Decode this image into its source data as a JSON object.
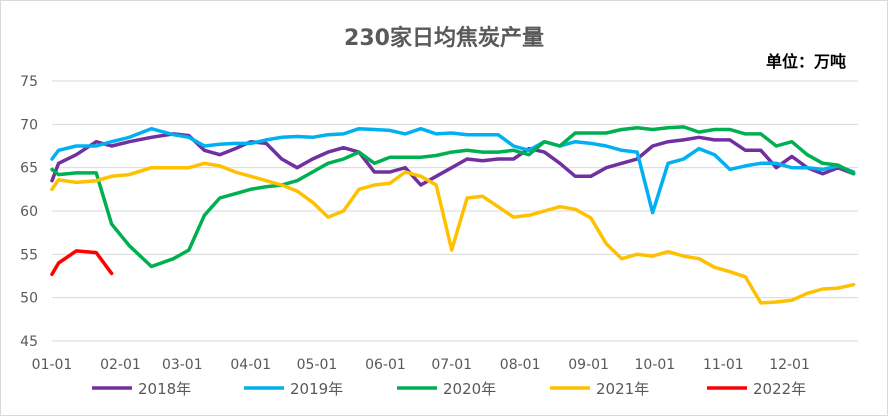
{
  "chart_data": {
    "type": "line",
    "title": "230家日均焦炭产量",
    "unit_label": "单位：万吨",
    "ylim": [
      45,
      75
    ],
    "yticks": [
      45,
      50,
      55,
      60,
      65,
      70,
      75
    ],
    "x_tick_labels": [
      "01-01",
      "02-01",
      "03-01",
      "04-01",
      "05-01",
      "06-01",
      "07-01",
      "08-01",
      "09-01",
      "10-01",
      "11-01",
      "12-01"
    ],
    "grid": "horizontal",
    "legend_position": "bottom",
    "series": [
      {
        "name": "2018年",
        "color": "#7030a0",
        "points": [
          [
            "01-01",
            63.5
          ],
          [
            "01-04",
            65.5
          ],
          [
            "01-12",
            66.5
          ],
          [
            "01-21",
            68.0
          ],
          [
            "01-28",
            67.5
          ],
          [
            "02-05",
            68.0
          ],
          [
            "02-15",
            68.5
          ],
          [
            "02-25",
            68.9
          ],
          [
            "03-04",
            68.7
          ],
          [
            "03-11",
            67.0
          ],
          [
            "03-18",
            66.5
          ],
          [
            "03-25",
            67.2
          ],
          [
            "04-01",
            68.0
          ],
          [
            "04-08",
            67.8
          ],
          [
            "04-15",
            66.0
          ],
          [
            "04-22",
            65.0
          ],
          [
            "04-29",
            66.0
          ],
          [
            "05-06",
            66.8
          ],
          [
            "05-13",
            67.3
          ],
          [
            "05-20",
            66.8
          ],
          [
            "05-27",
            64.5
          ],
          [
            "06-03",
            64.5
          ],
          [
            "06-10",
            65.0
          ],
          [
            "06-17",
            63.0
          ],
          [
            "06-24",
            64.0
          ],
          [
            "07-01",
            65.0
          ],
          [
            "07-08",
            66.0
          ],
          [
            "07-15",
            65.8
          ],
          [
            "07-22",
            66.0
          ],
          [
            "07-29",
            66.0
          ],
          [
            "08-05",
            67.2
          ],
          [
            "08-12",
            66.8
          ],
          [
            "08-19",
            65.5
          ],
          [
            "08-26",
            64.0
          ],
          [
            "09-02",
            64.0
          ],
          [
            "09-09",
            65.0
          ],
          [
            "09-16",
            65.5
          ],
          [
            "09-23",
            66.0
          ],
          [
            "09-30",
            67.5
          ],
          [
            "10-07",
            68.0
          ],
          [
            "10-14",
            68.2
          ],
          [
            "10-21",
            68.5
          ],
          [
            "10-28",
            68.2
          ],
          [
            "11-04",
            68.2
          ],
          [
            "11-11",
            67.0
          ],
          [
            "11-18",
            67.0
          ],
          [
            "11-25",
            65.0
          ],
          [
            "12-02",
            66.3
          ],
          [
            "12-09",
            65.0
          ],
          [
            "12-16",
            64.3
          ],
          [
            "12-23",
            65.0
          ],
          [
            "12-30",
            64.3
          ]
        ]
      },
      {
        "name": "2019年",
        "color": "#00b0f0",
        "points": [
          [
            "01-01",
            66.0
          ],
          [
            "01-04",
            67.0
          ],
          [
            "01-12",
            67.5
          ],
          [
            "01-21",
            67.5
          ],
          [
            "01-28",
            68.0
          ],
          [
            "02-05",
            68.5
          ],
          [
            "02-15",
            69.5
          ],
          [
            "02-25",
            68.8
          ],
          [
            "03-04",
            68.5
          ],
          [
            "03-11",
            67.5
          ],
          [
            "03-18",
            67.7
          ],
          [
            "03-25",
            67.8
          ],
          [
            "04-01",
            67.8
          ],
          [
            "04-08",
            68.2
          ],
          [
            "04-15",
            68.5
          ],
          [
            "04-22",
            68.6
          ],
          [
            "04-29",
            68.5
          ],
          [
            "05-06",
            68.8
          ],
          [
            "05-13",
            68.9
          ],
          [
            "05-20",
            69.5
          ],
          [
            "05-27",
            69.4
          ],
          [
            "06-03",
            69.3
          ],
          [
            "06-10",
            68.9
          ],
          [
            "06-17",
            69.5
          ],
          [
            "06-24",
            68.9
          ],
          [
            "07-01",
            69.0
          ],
          [
            "07-08",
            68.8
          ],
          [
            "07-15",
            68.8
          ],
          [
            "07-22",
            68.8
          ],
          [
            "07-29",
            67.5
          ],
          [
            "08-05",
            67.0
          ],
          [
            "08-12",
            68.0
          ],
          [
            "08-19",
            67.5
          ],
          [
            "08-26",
            68.0
          ],
          [
            "09-02",
            67.8
          ],
          [
            "09-09",
            67.5
          ],
          [
            "09-16",
            67.0
          ],
          [
            "09-23",
            66.8
          ],
          [
            "09-30",
            59.8
          ],
          [
            "10-07",
            65.5
          ],
          [
            "10-14",
            66.0
          ],
          [
            "10-21",
            67.2
          ],
          [
            "10-28",
            66.5
          ],
          [
            "11-04",
            64.8
          ],
          [
            "11-11",
            65.2
          ],
          [
            "11-18",
            65.5
          ],
          [
            "11-25",
            65.5
          ],
          [
            "12-02",
            65.0
          ],
          [
            "12-09",
            65.0
          ],
          [
            "12-16",
            64.8
          ],
          [
            "12-23",
            65.2
          ],
          [
            "12-30",
            64.5
          ]
        ]
      },
      {
        "name": "2020年",
        "color": "#00b050",
        "points": [
          [
            "01-01",
            64.8
          ],
          [
            "01-04",
            64.2
          ],
          [
            "01-12",
            64.4
          ],
          [
            "01-21",
            64.4
          ],
          [
            "01-28",
            58.5
          ],
          [
            "02-05",
            56.0
          ],
          [
            "02-15",
            53.6
          ],
          [
            "02-25",
            54.5
          ],
          [
            "03-04",
            55.5
          ],
          [
            "03-11",
            59.5
          ],
          [
            "03-18",
            61.5
          ],
          [
            "03-25",
            62.0
          ],
          [
            "04-01",
            62.5
          ],
          [
            "04-08",
            62.8
          ],
          [
            "04-15",
            63.0
          ],
          [
            "04-22",
            63.5
          ],
          [
            "04-29",
            64.5
          ],
          [
            "05-06",
            65.5
          ],
          [
            "05-13",
            66.0
          ],
          [
            "05-20",
            66.8
          ],
          [
            "05-27",
            65.5
          ],
          [
            "06-03",
            66.2
          ],
          [
            "06-10",
            66.2
          ],
          [
            "06-17",
            66.2
          ],
          [
            "06-24",
            66.4
          ],
          [
            "07-01",
            66.8
          ],
          [
            "07-08",
            67.0
          ],
          [
            "07-15",
            66.8
          ],
          [
            "07-22",
            66.8
          ],
          [
            "07-29",
            67.0
          ],
          [
            "08-05",
            66.5
          ],
          [
            "08-12",
            68.0
          ],
          [
            "08-19",
            67.5
          ],
          [
            "08-26",
            69.0
          ],
          [
            "09-02",
            69.0
          ],
          [
            "09-09",
            69.0
          ],
          [
            "09-16",
            69.4
          ],
          [
            "09-23",
            69.6
          ],
          [
            "09-30",
            69.4
          ],
          [
            "10-07",
            69.6
          ],
          [
            "10-14",
            69.7
          ],
          [
            "10-21",
            69.1
          ],
          [
            "10-28",
            69.4
          ],
          [
            "11-04",
            69.4
          ],
          [
            "11-11",
            68.9
          ],
          [
            "11-18",
            68.9
          ],
          [
            "11-25",
            67.5
          ],
          [
            "12-02",
            68.0
          ],
          [
            "12-09",
            66.5
          ],
          [
            "12-16",
            65.5
          ],
          [
            "12-23",
            65.3
          ],
          [
            "12-30",
            64.3
          ]
        ]
      },
      {
        "name": "2021年",
        "color": "#ffc000",
        "points": [
          [
            "01-01",
            62.5
          ],
          [
            "01-04",
            63.6
          ],
          [
            "01-12",
            63.3
          ],
          [
            "01-21",
            63.5
          ],
          [
            "01-28",
            64.0
          ],
          [
            "02-05",
            64.2
          ],
          [
            "02-15",
            65.0
          ],
          [
            "02-25",
            65.0
          ],
          [
            "03-04",
            65.0
          ],
          [
            "03-11",
            65.5
          ],
          [
            "03-18",
            65.2
          ],
          [
            "03-25",
            64.5
          ],
          [
            "04-01",
            64.0
          ],
          [
            "04-08",
            63.5
          ],
          [
            "04-15",
            63.0
          ],
          [
            "04-22",
            62.3
          ],
          [
            "04-29",
            61.0
          ],
          [
            "05-06",
            59.3
          ],
          [
            "05-13",
            60.0
          ],
          [
            "05-20",
            62.5
          ],
          [
            "05-27",
            63.0
          ],
          [
            "06-03",
            63.2
          ],
          [
            "06-10",
            64.5
          ],
          [
            "06-17",
            64.0
          ],
          [
            "06-24",
            63.0
          ],
          [
            "07-01",
            55.5
          ],
          [
            "07-08",
            61.5
          ],
          [
            "07-15",
            61.7
          ],
          [
            "07-22",
            60.5
          ],
          [
            "07-29",
            59.3
          ],
          [
            "08-05",
            59.5
          ],
          [
            "08-12",
            60.0
          ],
          [
            "08-19",
            60.5
          ],
          [
            "08-26",
            60.2
          ],
          [
            "09-02",
            59.2
          ],
          [
            "09-09",
            56.2
          ],
          [
            "09-16",
            54.5
          ],
          [
            "09-23",
            55.0
          ],
          [
            "09-30",
            54.8
          ],
          [
            "10-07",
            55.3
          ],
          [
            "10-14",
            54.8
          ],
          [
            "10-21",
            54.5
          ],
          [
            "10-28",
            53.5
          ],
          [
            "11-04",
            53.0
          ],
          [
            "11-11",
            52.4
          ],
          [
            "11-18",
            49.4
          ],
          [
            "11-25",
            49.5
          ],
          [
            "12-02",
            49.7
          ],
          [
            "12-09",
            50.5
          ],
          [
            "12-16",
            51.0
          ],
          [
            "12-23",
            51.1
          ],
          [
            "12-30",
            51.5
          ]
        ]
      },
      {
        "name": "2022年",
        "color": "#ff0000",
        "points": [
          [
            "01-01",
            52.7
          ],
          [
            "01-04",
            54.0
          ],
          [
            "01-12",
            55.4
          ],
          [
            "01-21",
            55.2
          ],
          [
            "01-28",
            52.8
          ]
        ]
      }
    ]
  }
}
